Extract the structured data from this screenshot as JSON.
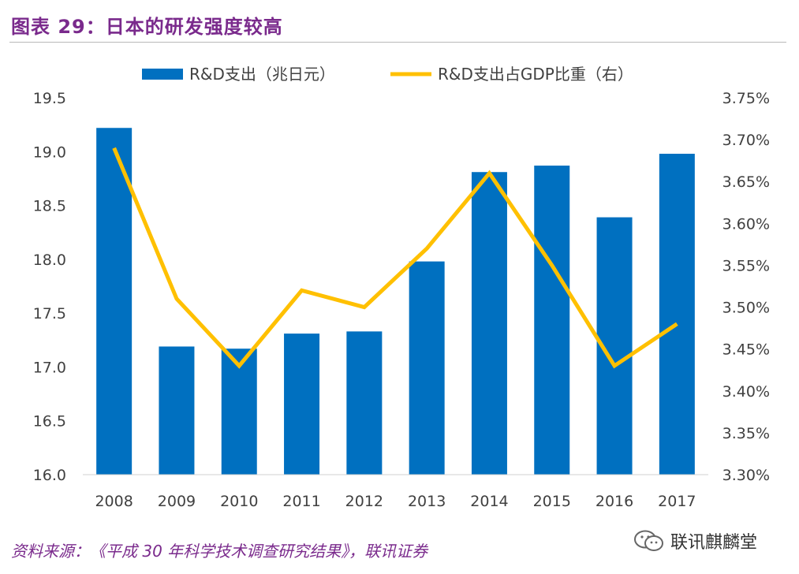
{
  "title": "图表 29：日本的研发强度较高",
  "source_note": "资料来源：《平成 30 年科学技术调查研究结果》，联讯证券",
  "watermark": {
    "text": "联讯麒麟堂",
    "icon": "wechat-icon"
  },
  "colors": {
    "bar": "#0070c0",
    "line": "#ffc000",
    "title": "#7a2a8c",
    "axis_text": "#404040"
  },
  "chart_data": {
    "type": "bar",
    "categories": [
      "2008",
      "2009",
      "2010",
      "2011",
      "2012",
      "2013",
      "2014",
      "2015",
      "2016",
      "2017"
    ],
    "series": [
      {
        "name": "R&D支出（兆日元）",
        "type": "bar",
        "axis": "left",
        "values": [
          19.22,
          17.19,
          17.17,
          17.31,
          17.33,
          17.98,
          18.81,
          18.87,
          18.39,
          18.98
        ]
      },
      {
        "name": "R&D支出占GDP比重（右）",
        "type": "line",
        "axis": "right",
        "values": [
          3.69,
          3.51,
          3.43,
          3.52,
          3.5,
          3.57,
          3.66,
          3.55,
          3.43,
          3.48
        ]
      }
    ],
    "left_axis": {
      "ylim": [
        16.0,
        19.5
      ],
      "ticks": [
        "16.0",
        "16.5",
        "17.0",
        "17.5",
        "18.0",
        "18.5",
        "19.0",
        "19.5"
      ]
    },
    "right_axis": {
      "ylim": [
        3.3,
        3.75
      ],
      "ticks": [
        "3.30%",
        "3.35%",
        "3.40%",
        "3.45%",
        "3.50%",
        "3.55%",
        "3.60%",
        "3.65%",
        "3.70%",
        "3.75%"
      ]
    },
    "legend_position": "top",
    "grid": false
  }
}
